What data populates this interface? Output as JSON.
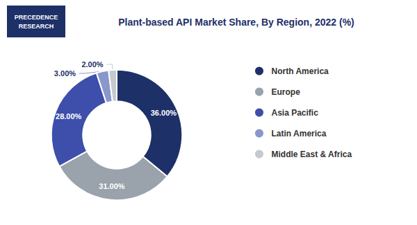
{
  "chart_data": {
    "type": "pie",
    "title": "Plant-based API Market Share, By Region, 2022 (%)",
    "categories": [
      "North America",
      "Europe",
      "Asia Pacific",
      "Latin America",
      "Middle East & Africa"
    ],
    "values": [
      36.0,
      31.0,
      28.0,
      3.0,
      2.0
    ],
    "value_labels": [
      "36.00%",
      "31.00%",
      "28.00%",
      "3.00%",
      "2.00%"
    ],
    "colors": [
      "#1e3068",
      "#9aa2ab",
      "#3d4faa",
      "#8a97cc",
      "#c5cad0"
    ],
    "color": "#1e3068",
    "data_labels": true,
    "legend": "right",
    "annotations": [
      "PRECEDENCE\nRESEARCH"
    ]
  }
}
